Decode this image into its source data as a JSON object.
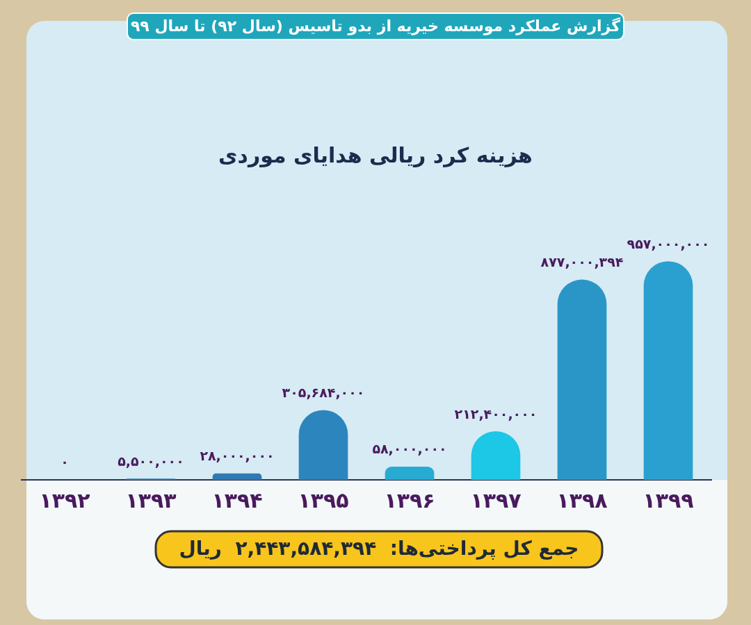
{
  "chart_data": {
    "type": "bar",
    "title": "گزارش عملکرد موسسه خیریه از بدو تاسیس (سال ۹۲) تا سال ۹۹",
    "subtitle": "هزینه کرد ریالی هدایای موردی",
    "categories": [
      "۱۳۹۲",
      "۱۳۹۳",
      "۱۳۹۴",
      "۱۳۹۵",
      "۱۳۹۶",
      "۱۳۹۷",
      "۱۳۹۸",
      "۱۳۹۹"
    ],
    "values": [
      0,
      5500000,
      28000000,
      305684000,
      58000000,
      212400000,
      877000394,
      957000000
    ],
    "colors": [
      "#3078b2",
      "#3079b3",
      "#2f7ab4",
      "#2d85bd",
      "#27abd2",
      "#1dc7e6",
      "#2a96c8",
      "#2aa0d0"
    ],
    "value_labels": [
      "۰",
      "۵,۵۰۰,۰۰۰",
      "۲۸,۰۰۰,۰۰۰",
      "۳۰۵,۶۸۴,۰۰۰",
      "۵۸,۰۰۰,۰۰۰",
      "۲۱۲,۴۰۰,۰۰۰",
      "۸۷۷,۰۰۰,۳۹۴",
      "۹۵۷,۰۰۰,۰۰۰"
    ],
    "annotations": [
      "جمع کل پرداختی‌ها:  ۲,۴۴۳,۵۸۴,۳۹۴  ریال"
    ]
  }
}
